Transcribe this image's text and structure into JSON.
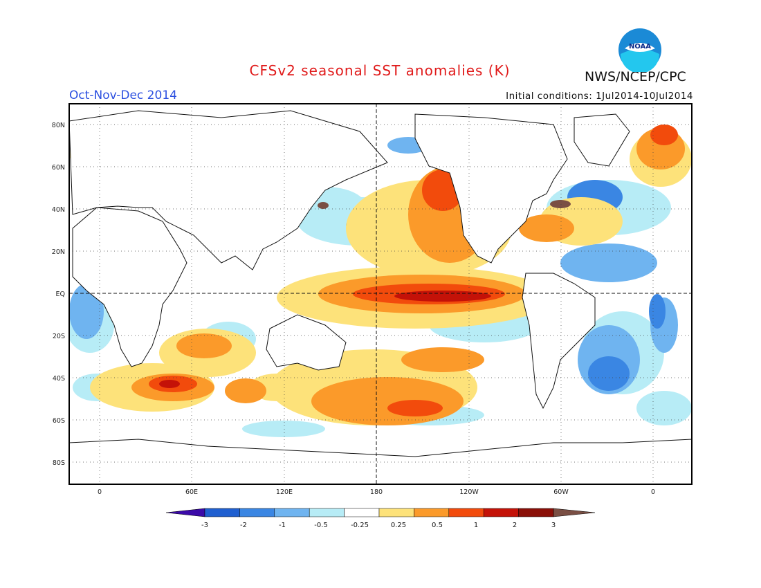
{
  "header": {
    "title": "CFSv2 seasonal SST anomalies (K)",
    "season": "Oct-Nov-Dec 2014",
    "initial_conditions": "Initial conditions: 1Jul2014-10Jul2014",
    "agency": "NWS/NCEP/CPC",
    "logo_text": "NOAA"
  },
  "axes": {
    "lat_labels": [
      "80N",
      "60N",
      "40N",
      "20N",
      "EQ",
      "20S",
      "40S",
      "60S",
      "80S"
    ],
    "lon_labels": [
      "0",
      "60E",
      "120E",
      "180",
      "120W",
      "60W",
      "0"
    ]
  },
  "colorbar": {
    "ticks": [
      "-3",
      "-2",
      "-1",
      "-0.5",
      "-0.25",
      "0.25",
      "0.5",
      "1",
      "2",
      "3"
    ],
    "colors": [
      "#3b0aa8",
      "#1f5fd0",
      "#3a86e3",
      "#6fb4f0",
      "#b7ecf6",
      "#ffffff",
      "#fde27a",
      "#fb9a2a",
      "#f24b0c",
      "#c41208",
      "#8a0f08",
      "#7a4f44"
    ]
  }
}
